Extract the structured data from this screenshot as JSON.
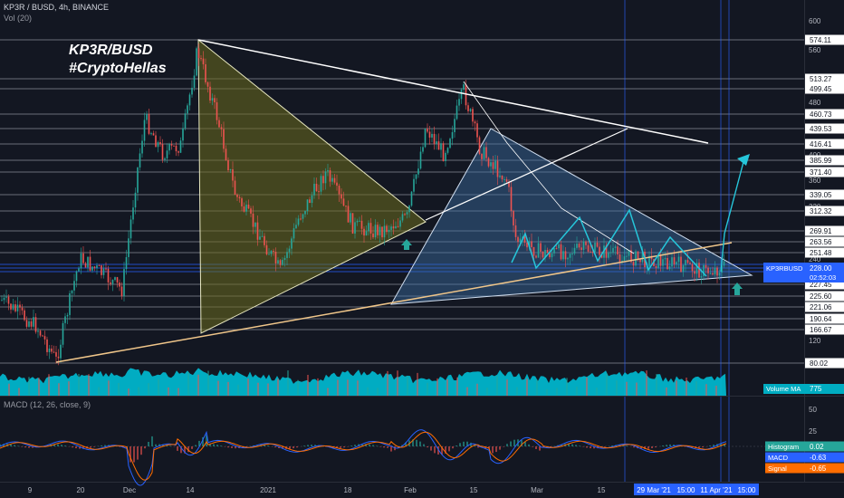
{
  "header": {
    "symbol_line": "KP3R / BUSD, 4h, BINANCE",
    "volume_line": "Vol (20)",
    "macd_line": "MACD (12, 26, close, 9)"
  },
  "watermark": {
    "line1": "KP3R/BUSD",
    "line2": "#CryptoHellas"
  },
  "colors": {
    "background": "#131722",
    "up_candle": "#26a69a",
    "down_candle": "#ef5350",
    "volume": "#00bcd4",
    "macd_line": "#2962ff",
    "signal_line": "#ff6d00",
    "price_tag": "#2962ff",
    "wedge_yellow": "#6b6b1e",
    "wedge_blue": "#3b6ea5",
    "arrow_green": "#26a69a",
    "projection_cyan": "#26c6da"
  },
  "chart_data": {
    "type": "candlestick",
    "price_axis": {
      "ticks": [
        600,
        560,
        480,
        400,
        360,
        320,
        240,
        120
      ],
      "level_labels": [
        574.11,
        513.27,
        499.45,
        460.73,
        439.53,
        416.41,
        385.99,
        371.4,
        339.05,
        312.32,
        269.91,
        263.56,
        251.48,
        227.45,
        225.6,
        221.06,
        190.64,
        166.67,
        80.02
      ],
      "last_price": {
        "symbol": "KP3RBUSD",
        "price": "228.00",
        "countdown": "02:52:03"
      },
      "volume_ma": {
        "label": "Volume MA",
        "value": "775"
      }
    },
    "macd_axis": {
      "ticks": [
        50,
        25
      ],
      "histogram": {
        "label": "Histogram",
        "value": "0.02"
      },
      "macd": {
        "label": "MACD",
        "value": "-0.63"
      },
      "signal": {
        "label": "Signal",
        "value": "-0.65"
      }
    },
    "time_axis": {
      "labels": [
        "9",
        "20",
        "Dec",
        "14",
        "2021",
        "18",
        "Feb",
        "15",
        "Mar",
        "15"
      ],
      "highlighted": [
        "29 Mar '21",
        "15:00",
        "11 Apr '21",
        "15:00"
      ]
    }
  }
}
